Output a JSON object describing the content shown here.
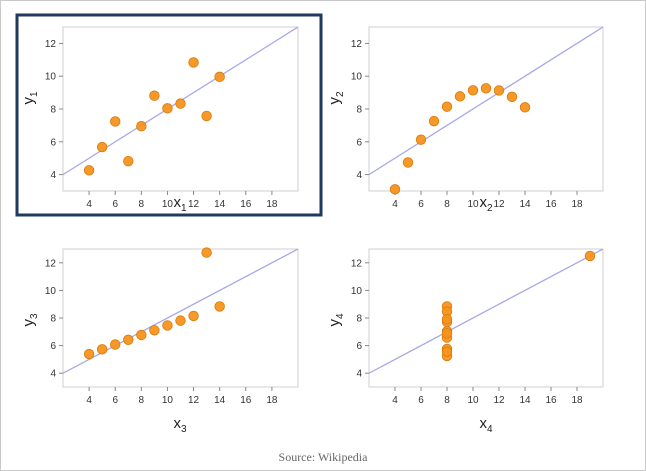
{
  "source": "Source: Wikipedia",
  "colors": {
    "point": "#f5931e",
    "point_edge": "#d97a0a",
    "fit_line": "#a8a8e8",
    "plot_border": "#cfcfcf",
    "highlight_border": "#1f3a5f"
  },
  "highlighted_chart": 0,
  "chart_data": [
    {
      "type": "scatter",
      "xlabel": "x",
      "xlabel_sub": "1",
      "ylabel": "y",
      "ylabel_sub": "1",
      "xlim": [
        2,
        20
      ],
      "ylim": [
        3,
        13
      ],
      "xticks": [
        4,
        6,
        8,
        10,
        12,
        14,
        16,
        18
      ],
      "yticks": [
        4,
        6,
        8,
        10,
        12
      ],
      "points": [
        [
          4,
          4.26
        ],
        [
          5,
          5.68
        ],
        [
          6,
          7.24
        ],
        [
          7,
          4.82
        ],
        [
          8,
          6.95
        ],
        [
          9,
          8.81
        ],
        [
          10,
          8.04
        ],
        [
          11,
          8.33
        ],
        [
          12,
          10.84
        ],
        [
          13,
          7.58
        ],
        [
          14,
          9.96
        ]
      ],
      "fit_line": {
        "intercept": 3.0,
        "slope": 0.5
      },
      "highlighted": true
    },
    {
      "type": "scatter",
      "xlabel": "x",
      "xlabel_sub": "2",
      "ylabel": "y",
      "ylabel_sub": "2",
      "xlim": [
        2,
        20
      ],
      "ylim": [
        3,
        13
      ],
      "xticks": [
        4,
        6,
        8,
        10,
        12,
        14,
        16,
        18
      ],
      "yticks": [
        4,
        6,
        8,
        10,
        12
      ],
      "points": [
        [
          4,
          3.1
        ],
        [
          5,
          4.74
        ],
        [
          6,
          6.13
        ],
        [
          7,
          7.26
        ],
        [
          8,
          8.14
        ],
        [
          9,
          8.77
        ],
        [
          10,
          9.14
        ],
        [
          11,
          9.26
        ],
        [
          12,
          9.13
        ],
        [
          13,
          8.74
        ],
        [
          14,
          8.1
        ]
      ],
      "fit_line": {
        "intercept": 3.0,
        "slope": 0.5
      },
      "highlighted": false
    },
    {
      "type": "scatter",
      "xlabel": "x",
      "xlabel_sub": "3",
      "ylabel": "y",
      "ylabel_sub": "3",
      "xlim": [
        2,
        20
      ],
      "ylim": [
        3,
        13
      ],
      "xticks": [
        4,
        6,
        8,
        10,
        12,
        14,
        16,
        18
      ],
      "yticks": [
        4,
        6,
        8,
        10,
        12
      ],
      "points": [
        [
          4,
          5.39
        ],
        [
          5,
          5.73
        ],
        [
          6,
          6.08
        ],
        [
          7,
          6.42
        ],
        [
          8,
          6.77
        ],
        [
          9,
          7.11
        ],
        [
          10,
          7.46
        ],
        [
          11,
          7.81
        ],
        [
          12,
          8.15
        ],
        [
          13,
          12.74
        ],
        [
          14,
          8.84
        ]
      ],
      "fit_line": {
        "intercept": 3.0,
        "slope": 0.5
      },
      "highlighted": false
    },
    {
      "type": "scatter",
      "xlabel": "x",
      "xlabel_sub": "4",
      "ylabel": "y",
      "ylabel_sub": "4",
      "xlim": [
        2,
        20
      ],
      "ylim": [
        3,
        13
      ],
      "xticks": [
        4,
        6,
        8,
        10,
        12,
        14,
        16,
        18
      ],
      "yticks": [
        4,
        6,
        8,
        10,
        12
      ],
      "points": [
        [
          8,
          6.58
        ],
        [
          8,
          5.76
        ],
        [
          8,
          7.71
        ],
        [
          8,
          8.84
        ],
        [
          8,
          8.47
        ],
        [
          8,
          7.04
        ],
        [
          8,
          5.25
        ],
        [
          19,
          12.5
        ],
        [
          8,
          5.56
        ],
        [
          8,
          7.91
        ],
        [
          8,
          6.89
        ]
      ],
      "fit_line": {
        "intercept": 3.0,
        "slope": 0.5
      },
      "highlighted": false
    }
  ]
}
